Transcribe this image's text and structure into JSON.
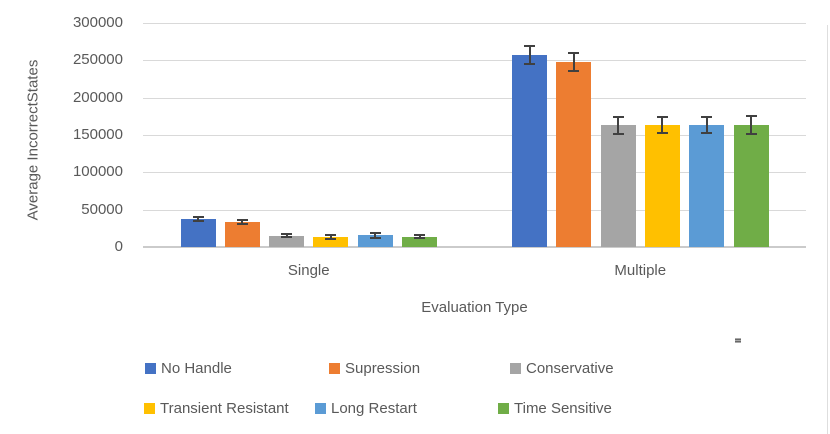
{
  "chart_data": {
    "type": "bar",
    "xlabel": "Evaluation Type",
    "ylabel": "Average IncorrectStates",
    "categories": [
      "Single",
      "Multiple"
    ],
    "yticks": [
      0,
      50000,
      100000,
      150000,
      200000,
      250000,
      300000
    ],
    "ylim": [
      0,
      300000
    ],
    "grid": true,
    "legend_position": "bottom",
    "error_bars": true,
    "series": [
      {
        "name": "No Handle",
        "color": "#4472C4",
        "values": [
          37000,
          257000
        ],
        "errors": [
          4000,
          13000
        ]
      },
      {
        "name": "Supression",
        "color": "#ED7D31",
        "values": [
          33500,
          247500
        ],
        "errors": [
          4500,
          13500
        ]
      },
      {
        "name": "Conservative",
        "color": "#A5A5A5",
        "values": [
          15000,
          163000
        ],
        "errors": [
          3500,
          13000
        ]
      },
      {
        "name": "Transient Resistant",
        "color": "#FFC000",
        "values": [
          13500,
          163000
        ],
        "errors": [
          4500,
          12000
        ]
      },
      {
        "name": "Long Restart",
        "color": "#5B9BD5",
        "values": [
          15500,
          163000
        ],
        "errors": [
          5000,
          12000
        ]
      },
      {
        "name": "Time Sensitive",
        "color": "#70AD47",
        "values": [
          14000,
          163500
        ],
        "errors": [
          3500,
          13000
        ]
      }
    ],
    "error_bar_color": "#404040",
    "gridline_color": "#D9D9D9",
    "text_color": "#595959"
  }
}
